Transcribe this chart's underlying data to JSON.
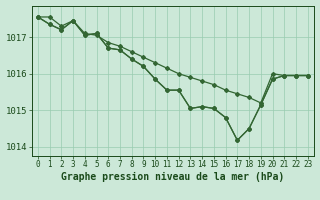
{
  "title": "Graphe pression niveau de la mer (hPa)",
  "x": [
    0,
    1,
    2,
    3,
    4,
    5,
    6,
    7,
    8,
    9,
    10,
    11,
    12,
    13,
    14,
    15,
    16,
    17,
    18,
    19,
    20,
    21,
    22,
    23
  ],
  "line1": [
    1017.55,
    1017.55,
    1017.3,
    1017.45,
    1017.1,
    1017.05,
    1016.85,
    1016.75,
    1016.6,
    1016.45,
    1016.3,
    1016.15,
    1016.0,
    1015.9,
    1015.8,
    1015.7,
    1015.55,
    1015.45,
    1015.35,
    1015.2,
    1016.0,
    1015.95,
    1015.95,
    1015.95
  ],
  "line2": [
    1017.55,
    1017.35,
    1017.2,
    1017.45,
    1017.05,
    1017.1,
    1016.7,
    1016.65,
    1016.4,
    1016.2,
    1015.85,
    1015.55,
    1015.55,
    1015.05,
    1015.1,
    1015.05,
    1014.8,
    1014.18,
    1014.5,
    1015.15,
    1015.85,
    1015.95,
    1015.95,
    1015.95
  ],
  "line3": [
    1017.55,
    1017.35,
    1017.2,
    1017.45,
    1017.05,
    1017.1,
    1016.7,
    1016.65,
    1016.4,
    1016.2,
    1015.85,
    1015.55,
    1015.55,
    1015.05,
    1015.1,
    1015.05,
    1014.8,
    1014.18,
    1014.5,
    1015.15,
    1015.85,
    1015.95,
    1015.95,
    1015.95
  ],
  "line_color": "#336633",
  "bg_color": "#cce8d8",
  "grid_color": "#99ccb0",
  "text_color": "#1a4a1a",
  "ylim_min": 1013.75,
  "ylim_max": 1017.85,
  "yticks": [
    1014,
    1015,
    1016,
    1017
  ],
  "marker": "D",
  "marker_size": 2.0,
  "linewidth": 0.9,
  "title_fontsize": 7.0,
  "tick_fontsize": 5.5,
  "ytick_fontsize": 6.5
}
